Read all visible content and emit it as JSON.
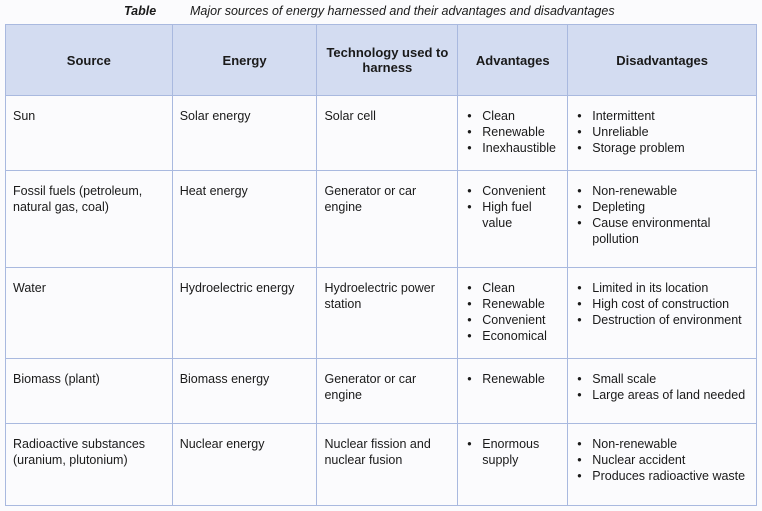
{
  "caption": {
    "label": "Table",
    "text": "Major sources of energy harnessed and their advantages and disadvantages"
  },
  "headers": [
    "Source",
    "Energy",
    "Technology used to harness",
    "Advantages",
    "Disadvantages"
  ],
  "rows": [
    {
      "source": "Sun",
      "energy": "Solar energy",
      "technology": "Solar cell",
      "advantages": [
        "Clean",
        "Renewable",
        "Inexhaustible"
      ],
      "disadvantages": [
        "Intermittent",
        "Unreliable",
        "Storage problem"
      ]
    },
    {
      "source": "Fossil fuels (petroleum, natural gas, coal)",
      "energy": "Heat energy",
      "technology": "Generator or car engine",
      "advantages": [
        "Convenient",
        "High fuel value"
      ],
      "disadvantages": [
        "Non-renewable",
        "Depleting",
        "Cause environmental pollution"
      ]
    },
    {
      "source": "Water",
      "energy": "Hydroelectric energy",
      "technology": "Hydroelectric power station",
      "advantages": [
        "Clean",
        "Renewable",
        "Convenient",
        "Economical"
      ],
      "disadvantages": [
        "Limited in its location",
        "High cost of construction",
        "Destruction of environment"
      ]
    },
    {
      "source": "Biomass (plant)",
      "energy": "Biomass energy",
      "technology": "Generator or car engine",
      "advantages": [
        "Renewable"
      ],
      "disadvantages": [
        "Small scale",
        "Large areas of land needed"
      ]
    },
    {
      "source": "Radioactive substances (uranium, plutonium)",
      "energy": "Nuclear energy",
      "technology": "Nuclear fission and nuclear fusion",
      "advantages": [
        "Enormous supply"
      ],
      "disadvantages": [
        "Non-renewable",
        "Nuclear accident",
        "Produces radioactive waste"
      ]
    }
  ]
}
